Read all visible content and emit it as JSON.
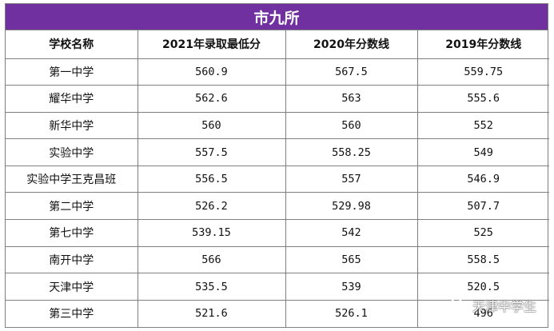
{
  "title": "市九所",
  "headers": [
    "学校名称",
    "2021年录取最低分",
    "2020年分数线",
    "2019年分数线"
  ],
  "rows": [
    [
      "第一中学",
      "560.9",
      "567.5",
      "559.75"
    ],
    [
      "耀华中学",
      "562.6",
      "563",
      "555.6"
    ],
    [
      "新华中学",
      "560",
      "560",
      "552"
    ],
    [
      "实验中学",
      "557.5",
      "558.25",
      "549"
    ],
    [
      "实验中学王克昌班",
      "556.5",
      "557",
      "546.9"
    ],
    [
      "第二中学",
      "526.2",
      "529.98",
      "507.7"
    ],
    [
      "第七中学",
      "539.15",
      "542",
      "525"
    ],
    [
      "南开中学",
      "566",
      "565",
      "558.5"
    ],
    [
      "天津中学",
      "535.5",
      "539",
      "520.5"
    ],
    [
      "第三中学",
      "521.6",
      "526.1",
      "496"
    ]
  ],
  "watermark": {
    "text": "天津中学生",
    "icon": "wechat-icon"
  },
  "colors": {
    "title_bg": "#7030a0",
    "title_text": "#ffffff",
    "border": "#7f7f7f"
  }
}
